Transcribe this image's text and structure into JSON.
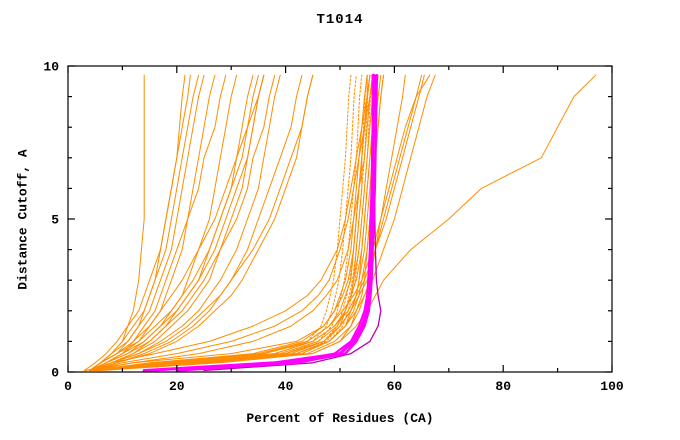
{
  "chart_data": {
    "type": "line",
    "title": "T1014",
    "xlabel": "Percent of Residues (CA)",
    "ylabel": "Distance Cutoff, A",
    "xlim": [
      0,
      100
    ],
    "ylim": [
      0,
      10
    ],
    "x_major": [
      0,
      20,
      40,
      60,
      80,
      100
    ],
    "x_minor": [
      10,
      30,
      50,
      70,
      90
    ],
    "y_major": [
      0,
      5,
      10
    ],
    "y_minor": [
      1,
      2,
      3,
      4,
      6,
      7,
      8,
      9
    ],
    "grid": false,
    "legend": "none",
    "default_color": "#ff8c00",
    "highlight_color": "#ff00ff",
    "axis_color": "#000000",
    "y_samples": [
      0.05,
      0.3,
      0.6,
      1.0,
      1.5,
      2.0,
      2.5,
      3.0,
      4.0,
      5.0,
      6.0,
      7.0,
      8.0,
      9.0,
      9.7
    ],
    "series": [
      {
        "x": [
          4,
          20,
          40,
          47,
          50,
          51,
          52,
          52.5,
          53,
          53.5,
          54,
          54,
          54.5,
          55,
          55
        ]
      },
      {
        "x": [
          5,
          25,
          43,
          48,
          51,
          52,
          53,
          53.5,
          54,
          54.5,
          55,
          55.5,
          56,
          56.5,
          57
        ]
      },
      {
        "x": [
          4,
          15,
          35,
          44,
          48,
          50,
          51,
          52,
          52.5,
          53,
          53.5,
          54,
          54.5,
          55,
          55.5
        ]
      },
      {
        "x": [
          6,
          28,
          45,
          50,
          52,
          53,
          54,
          54.5,
          55,
          55.5,
          56,
          56.5,
          57,
          57.5,
          58
        ]
      },
      {
        "x": [
          3,
          12,
          30,
          42,
          47,
          49,
          50.5,
          51.5,
          52.5,
          53,
          53.5,
          54,
          54.5,
          55,
          55.5
        ]
      },
      {
        "x": [
          5,
          22,
          41,
          47,
          50,
          52,
          53,
          53.5,
          54.5,
          55,
          55.5,
          56,
          56.5,
          57,
          57.5
        ]
      },
      {
        "x": [
          4,
          18,
          36,
          45,
          49,
          51,
          52,
          53,
          54,
          54.5,
          55,
          55.5,
          56,
          56.5,
          57
        ]
      },
      {
        "x": [
          5,
          24,
          42,
          48,
          51,
          52.5,
          53.5,
          54,
          55,
          55.5,
          56,
          56.5,
          57,
          57.5,
          58
        ]
      },
      {
        "x": [
          3,
          16,
          34,
          43,
          47,
          49,
          50,
          51,
          52,
          52.5,
          53,
          53.5,
          54,
          54.5,
          55
        ]
      },
      {
        "x": [
          5,
          20,
          39,
          46,
          49.5,
          51,
          52,
          52.5,
          53.5,
          54,
          54.5,
          55,
          55.5,
          56,
          56.5
        ]
      },
      {
        "x": [
          5,
          26,
          44,
          49,
          52,
          53.5,
          54.5,
          55.5,
          56.5,
          57.5,
          58.5,
          59.5,
          60.5,
          61.5,
          62
        ]
      },
      {
        "x": [
          5,
          22,
          40,
          47,
          50,
          52,
          53.5,
          55,
          56.5,
          58,
          59.5,
          61,
          62.5,
          64,
          65
        ]
      },
      {
        "x": [
          4,
          18,
          36,
          44,
          48,
          50.5,
          52.5,
          54,
          56,
          57.5,
          59,
          60.5,
          62,
          64,
          66.5
        ]
      },
      {
        "x": [
          5,
          24,
          42,
          48,
          51,
          53,
          54.5,
          56,
          58,
          60,
          61.5,
          63,
          64.5,
          66,
          67.5
        ]
      },
      {
        "x": [
          4,
          20,
          38,
          45,
          49,
          51.5,
          53,
          54.5,
          56.5,
          58.5,
          60,
          61.5,
          63,
          64.5,
          65.5
        ]
      },
      {
        "x": [
          4,
          10,
          20,
          30,
          38,
          43,
          46,
          48,
          50,
          51.5,
          52.5,
          53.5,
          54.5,
          55.5,
          56
        ]
      },
      {
        "x": [
          4,
          8,
          16,
          26,
          34,
          40,
          44,
          46.5,
          49.5,
          51,
          52,
          53,
          54,
          55,
          55.5
        ]
      },
      {
        "x": [
          4,
          12,
          24,
          34,
          41,
          45,
          47.5,
          49.5,
          51.5,
          52.5,
          53.5,
          54.5,
          55,
          55.5,
          56
        ]
      },
      {
        "x": [
          4,
          6,
          8,
          10,
          11,
          12,
          12.5,
          13,
          13.5,
          14,
          14,
          14,
          14,
          14,
          14
        ]
      },
      {
        "x": [
          4,
          6,
          9,
          11,
          13,
          14,
          15,
          16,
          17,
          18,
          19,
          20,
          21,
          22,
          22.5
        ]
      },
      {
        "x": [
          4,
          7,
          10,
          13,
          15,
          17,
          18,
          19,
          21,
          22,
          23,
          24,
          25,
          26,
          27
        ]
      },
      {
        "x": [
          4,
          7,
          11,
          14,
          17,
          19,
          21,
          22,
          24,
          26,
          27,
          28,
          29,
          30,
          31
        ]
      },
      {
        "x": [
          4,
          8,
          12,
          16,
          19,
          22,
          24,
          26,
          28,
          30,
          32,
          33,
          34,
          35,
          36
        ]
      },
      {
        "x": [
          4,
          8,
          13,
          17,
          21,
          24,
          26,
          28,
          31,
          33,
          35,
          36,
          37,
          38,
          39
        ]
      },
      {
        "x": [
          4,
          9,
          14,
          19,
          23,
          26,
          28,
          30,
          33,
          35,
          37,
          39,
          41,
          42,
          43
        ]
      },
      {
        "x": [
          4,
          9,
          15,
          20,
          24,
          27,
          30,
          32,
          35,
          38,
          40,
          42,
          43,
          44,
          45
        ]
      },
      {
        "x": [
          4,
          6,
          8,
          11,
          13,
          15,
          16,
          17,
          19,
          20,
          21,
          22,
          23,
          24,
          25
        ]
      },
      {
        "x": [
          4,
          7,
          10,
          14,
          17,
          20,
          22,
          24,
          27,
          29,
          31,
          33,
          34,
          35,
          36
        ]
      },
      {
        "x": [
          4,
          6,
          9,
          12,
          15,
          17,
          19,
          21,
          24,
          27,
          29,
          31,
          33,
          35,
          36
        ]
      },
      {
        "x": [
          4,
          7,
          11,
          15,
          18,
          21,
          23,
          25,
          28,
          31,
          33,
          34,
          36,
          37,
          38
        ]
      },
      {
        "x": [
          4,
          8,
          12,
          15,
          18,
          20,
          22,
          24,
          26,
          28,
          30,
          31,
          32,
          33,
          34
        ]
      },
      {
        "x": [
          4,
          6,
          8,
          10,
          12,
          14,
          15,
          16,
          18,
          19,
          20,
          21,
          22,
          23,
          24
        ]
      },
      {
        "x": [
          4,
          7,
          10,
          12,
          14,
          16,
          17,
          18,
          20,
          22,
          24,
          25,
          27,
          28,
          29
        ]
      },
      {
        "x": [
          4,
          8,
          13,
          18,
          22,
          25,
          28,
          30,
          34,
          37,
          39,
          41,
          43,
          44,
          45
        ]
      },
      {
        "x": [
          3,
          5,
          7,
          9,
          11,
          13,
          14,
          15,
          17,
          18,
          19,
          20,
          20.5,
          21,
          21.5
        ]
      },
      {
        "x": [
          4,
          6,
          9,
          13,
          16,
          19,
          21,
          23,
          26,
          28,
          30,
          32,
          33,
          34,
          35
        ]
      },
      {
        "x": [
          4,
          20,
          40,
          46,
          48.5,
          49.5,
          50.2,
          50.8,
          51.5,
          52,
          52.5,
          53,
          53.3,
          53.6,
          54
        ],
        "dash": "2 2"
      },
      {
        "x": [
          5,
          22,
          41,
          47,
          49.5,
          50.5,
          51.2,
          51.8,
          52.5,
          53,
          53.5,
          54,
          54.3,
          54.6,
          55
        ],
        "dash": "2 2"
      },
      {
        "x": [
          4,
          18,
          38,
          45,
          47.5,
          48.5,
          49.2,
          49.8,
          50.5,
          51,
          51.5,
          52,
          52.3,
          52.6,
          53
        ],
        "dash": "2 2"
      },
      {
        "x": [
          5,
          24,
          42,
          47.5,
          50,
          51,
          51.7,
          52.3,
          53,
          53.5,
          54,
          54.5,
          54.8,
          55.1,
          55.5
        ],
        "dash": "2 2"
      },
      {
        "x": [
          4,
          16,
          36,
          44,
          46.5,
          47.5,
          48.2,
          48.8,
          49.5,
          50,
          50.5,
          51,
          51.3,
          51.6,
          52
        ],
        "dash": "2 2"
      },
      {
        "x": [
          5,
          26,
          43,
          48,
          50.5,
          51.5,
          52.2,
          52.8,
          53.5,
          54,
          54.5,
          55,
          55.3,
          55.6,
          56
        ],
        "dash": "2 2"
      },
      {
        "x": [
          5,
          25,
          45,
          50,
          53,
          55,
          56.5,
          58,
          63,
          70,
          76,
          87,
          90,
          93,
          97
        ]
      },
      {
        "x": [
          25,
          45,
          52,
          55.5,
          57,
          57.5,
          57,
          56.7,
          56.5,
          56.4,
          56.4,
          56.4,
          56.5,
          56.5,
          56.5
        ],
        "color": "#bb00bb",
        "width": 1.3
      },
      {
        "x": [
          15,
          40,
          49,
          52,
          53.5,
          54.5,
          55,
          55.2,
          55.5,
          55.6,
          55.8,
          55.9,
          56,
          56,
          56
        ],
        "color": "#ff00ff",
        "width": 2.2
      },
      {
        "x": [
          20,
          42,
          51,
          53,
          54.5,
          55.3,
          55.6,
          55.8,
          56,
          56.2,
          56.4,
          56.5,
          56.6,
          56.7,
          56.8
        ],
        "color": "#ff00ff",
        "width": 2.4
      },
      {
        "x": [
          14,
          38,
          50,
          52.5,
          54,
          55,
          55.3,
          55.5,
          55.7,
          55.8,
          56,
          56,
          56.1,
          56.2,
          56.2
        ],
        "color": "#ff00ff",
        "width": 3
      }
    ]
  }
}
